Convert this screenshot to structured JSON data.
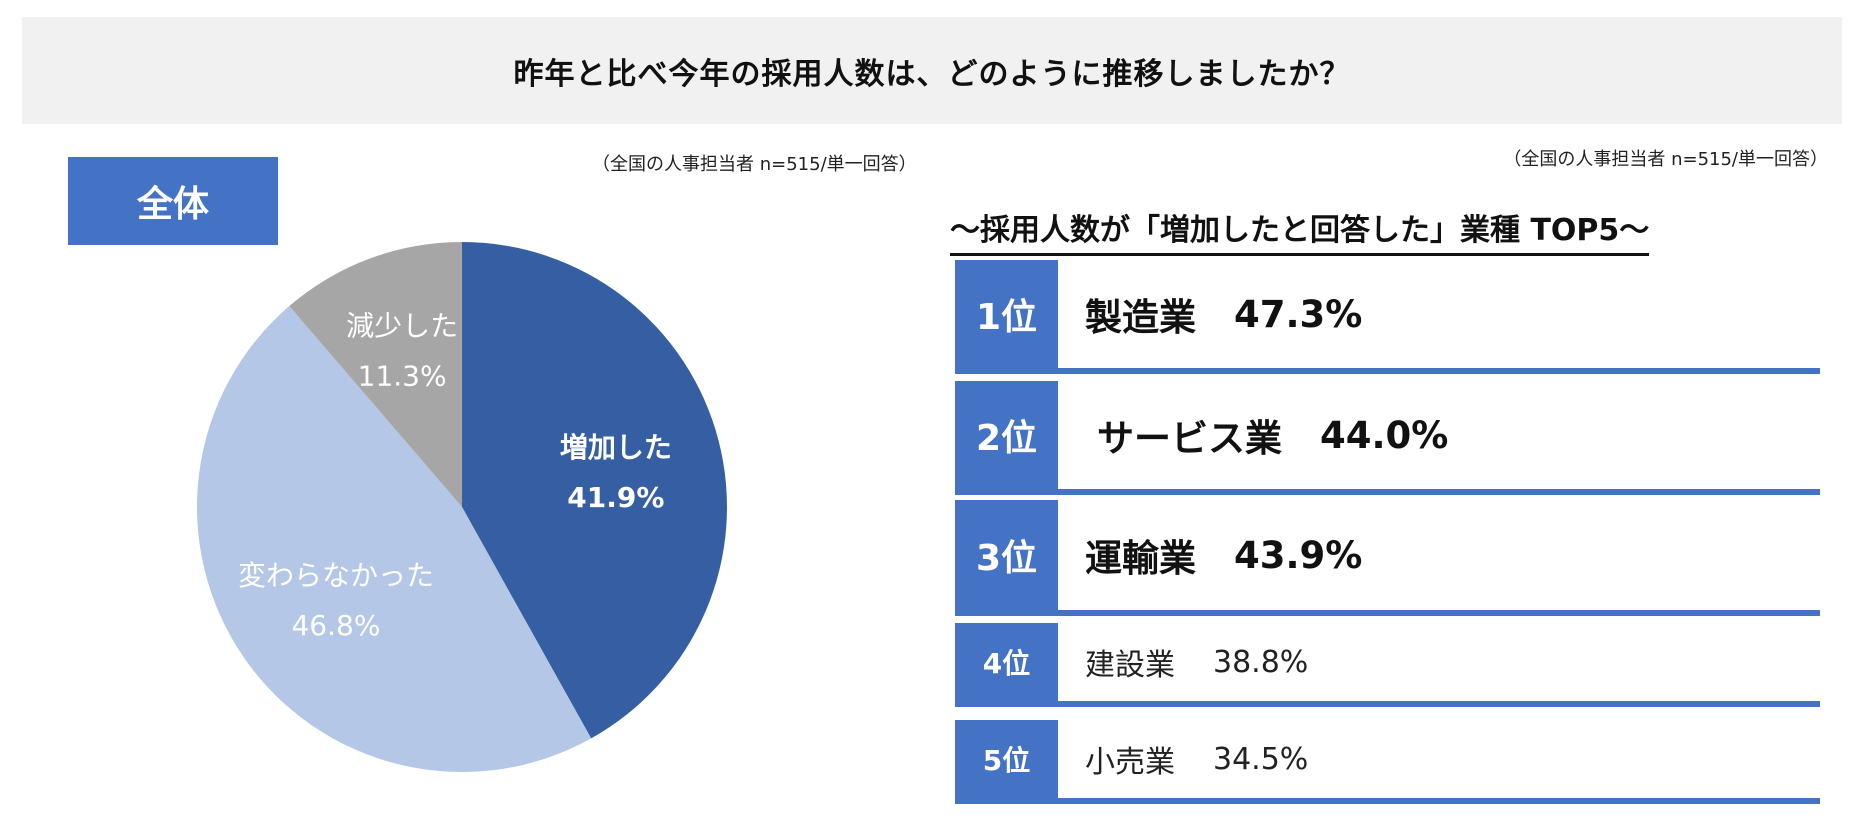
{
  "header": {
    "title": "昨年と比べ今年の採用人数は、どのように推移しましたか？"
  },
  "overall": {
    "badge": "全体",
    "note": "（全国の人事担当者 n=515/単一回答）"
  },
  "top5": {
    "note": "（全国の人事担当者 n=515/単一回答）",
    "title": "〜採用人数が「増加したと回答した」業種 TOP5〜",
    "rows": [
      {
        "rank": "1位",
        "industry": "製造業",
        "percent": "47.3%"
      },
      {
        "rank": "2位",
        "industry": "サービス業",
        "percent": "44.0%"
      },
      {
        "rank": "3位",
        "industry": "運輸業",
        "percent": "43.9%"
      },
      {
        "rank": "4位",
        "industry": "建設業",
        "percent": "38.8%"
      },
      {
        "rank": "5位",
        "industry": "小売業",
        "percent": "34.5%"
      }
    ]
  },
  "chart_data": [
    {
      "type": "pie",
      "title": "全体",
      "categories": [
        "増加した",
        "変わらなかった",
        "減少した"
      ],
      "values": [
        41.9,
        46.8,
        11.3
      ],
      "labels": [
        "41.9%",
        "46.8%",
        "11.3%"
      ],
      "colors": [
        "#365fa3",
        "#b4c7e7",
        "#a6a6a6"
      ],
      "label_colors": [
        "#ffffff",
        "#ffffff",
        "#ffffff"
      ],
      "start_angle_deg": 0,
      "direction": "clockwise"
    },
    {
      "type": "table",
      "title": "〜採用人数が「増加したと回答した」業種 TOP5〜",
      "categories": [
        "製造業",
        "サービス業",
        "運輸業",
        "建設業",
        "小売業"
      ],
      "values": [
        47.3,
        44.0,
        43.9,
        38.8,
        34.5
      ]
    }
  ],
  "colors": {
    "accent": "#4472c4",
    "banner_bg": "#f1f1f1"
  }
}
